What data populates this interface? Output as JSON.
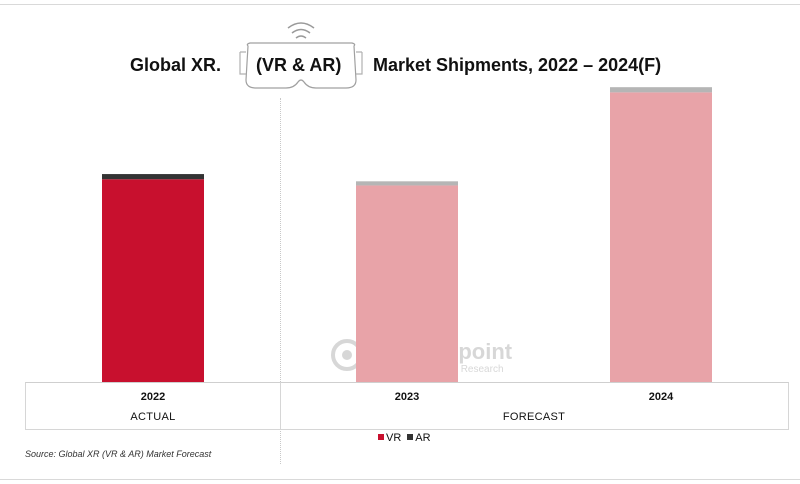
{
  "title": {
    "part1": "Global XR.",
    "part2": "(VR & AR)",
    "part3": "Market Shipments, 2022 – 2024(F)"
  },
  "axis": {
    "groups": [
      "ACTUAL",
      "FORECAST"
    ]
  },
  "legend": [
    {
      "label": "VR",
      "color": "#c8102e"
    },
    {
      "label": "AR",
      "color": "#333333"
    }
  ],
  "source": "Source: Global XR (VR & AR) Market Forecast",
  "watermark": {
    "name": "Counterpoint",
    "sub": "Technology Market Research"
  },
  "colors": {
    "vr_actual": "#c8102e",
    "ar_actual": "#333333",
    "vr_forecast": "#e8a3a8",
    "ar_forecast": "#b5b5b5"
  },
  "chart_data": {
    "type": "bar",
    "stacked": true,
    "categories": [
      "2022",
      "2023",
      "2024"
    ],
    "series": [
      {
        "name": "VR",
        "values": [
          196,
          190,
          280
        ]
      },
      {
        "name": "AR",
        "values": [
          5,
          4,
          5
        ]
      }
    ],
    "ylim": [
      0,
      290
    ],
    "grid": false,
    "legend_position": "bottom"
  }
}
